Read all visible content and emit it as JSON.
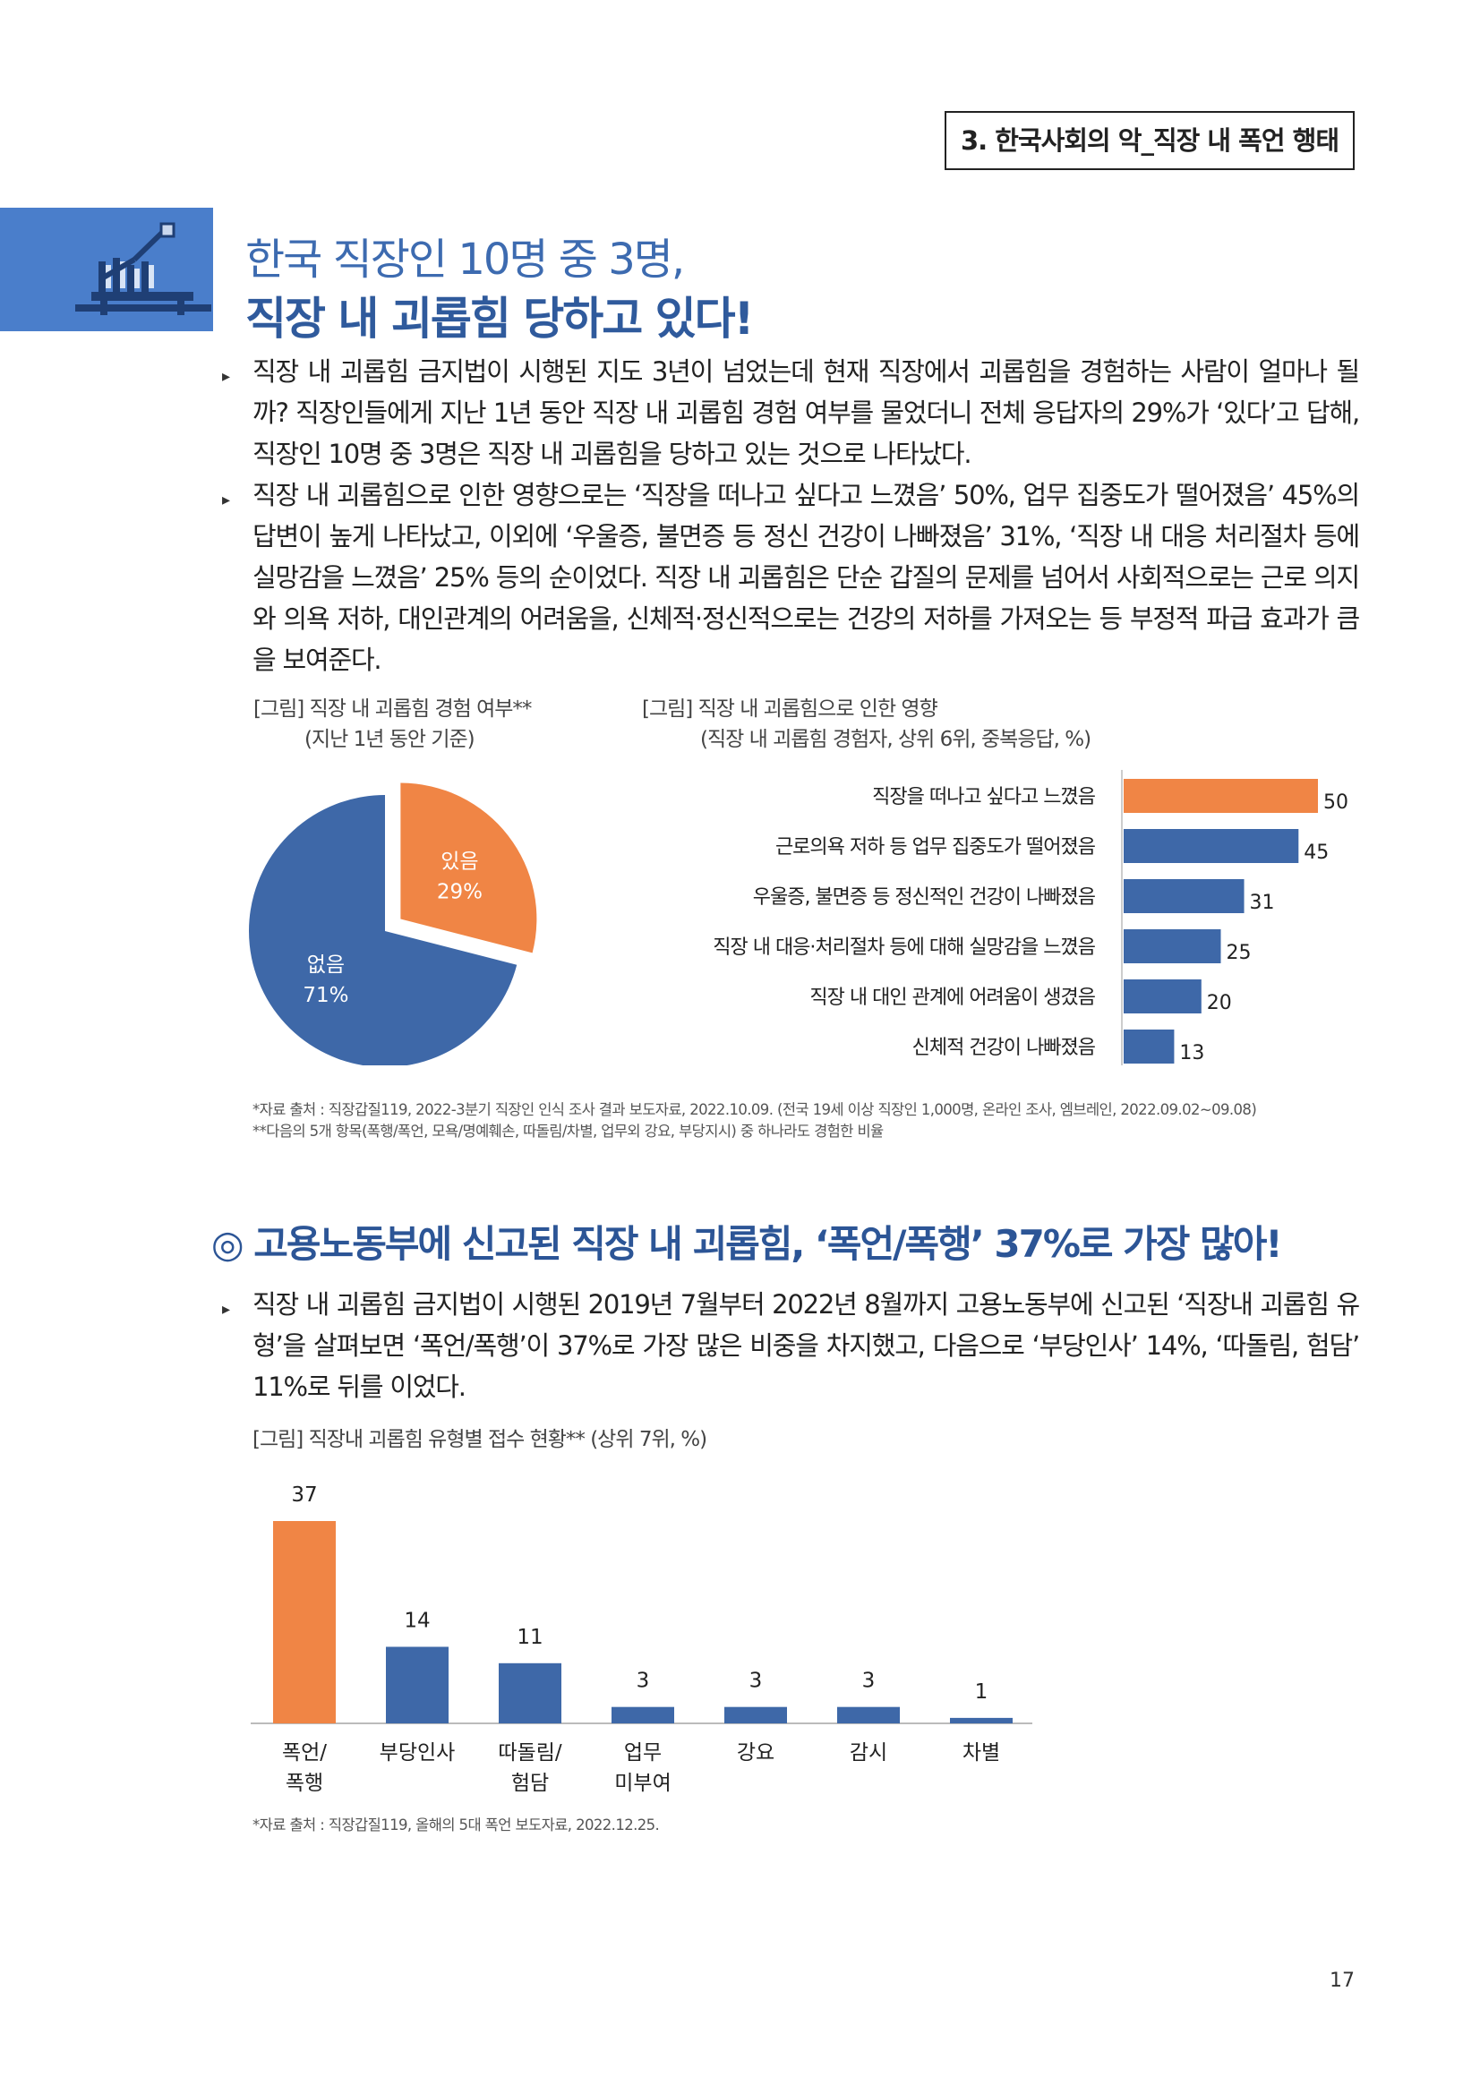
{
  "header": {
    "section_label": "3. 한국사회의 악_직장 내 폭언 행태"
  },
  "hero": {
    "title_line1": "한국 직장인 10명 중 3명,",
    "title_line2": "직장 내 괴롭힘 당하고 있다!"
  },
  "bullets1": [
    "직장 내 괴롭힘 금지법이 시행된 지도 3년이 넘었는데 현재 직장에서 괴롭힘을 경험하는 사람이 얼마나 될까? 직장인들에게 지난 1년 동안 직장 내 괴롭힘 경험 여부를 물었더니 전체 응답자의 29%가 ‘있다’고 답해, 직장인 10명 중 3명은 직장 내 괴롭힘을 당하고 있는 것으로 나타났다.",
    "직장 내 괴롭힘으로 인한 영향으로는 ‘직장을 떠나고 싶다고 느꼈음’ 50%, 업무 집중도가 떨어졌음’ 45%의 답변이 높게 나타났고, 이외에 ‘우울증, 불면증 등 정신 건강이 나빠졌음’ 31%, ‘직장 내 대응 처리절차 등에 실망감을 느꼈음’ 25% 등의 순이었다. 직장 내 괴롭힘은 단순 갑질의 문제를 넘어서 사회적으로는 근로 의지와 의욕 저하, 대인관계의 어려움을, 신체적·정신적으로는 건강의 저하를 가져오는 등 부정적 파급 효과가 큼을 보여준다."
  ],
  "figure_pie": {
    "caption_line1": "[그림] 직장 내 괴롭힘 경험 여부**",
    "caption_line2": "(지난 1년 동안 기준)"
  },
  "figure_hbar": {
    "caption_line1": "[그림] 직장 내 괴롭힘으로 인한 영향",
    "caption_line2": "(직장 내 괴롭힘 경험자, 상위 6위, 중복응답, %)"
  },
  "sources1": [
    "*자료 출처 : 직장갑질119, 2022-3분기 직장인 인식 조사 결과 보도자료, 2022.10.09. (전국 19세 이상 직장인 1,000명, 온라인 조사, 엠브레인, 2022.09.02~09.08)",
    "**다음의 5개 항목(폭행/폭언, 모욕/명예훼손, 따돌림/차별, 업무외 강요, 부당지시) 중 하나라도 경험한 비율"
  ],
  "section2": {
    "title": "◎ 고용노동부에 신고된 직장 내 괴롭힘, ‘폭언/폭행’ 37%로 가장 많아!"
  },
  "bullets2": [
    "직장 내 괴롭힘 금지법이 시행된 2019년 7월부터 2022년 8월까지 고용노동부에 신고된 ‘직장내 괴롭힘 유형’을 살펴보면 ‘폭언/폭행’이 37%로 가장 많은 비중을 차지했고, 다음으로 ‘부당인사’ 14%, ‘따돌림, 험담’ 11%로 뒤를 이었다."
  ],
  "figure_vbar": {
    "caption": "[그림] 직장내 괴롭힘 유형별 접수 현황** (상위 7위, %)"
  },
  "sources2": [
    "*자료 출처 : 직장갑질119, 올해의 5대 폭언 보도자료, 2022.12.25."
  ],
  "page_number": "17",
  "colors": {
    "orange": "#f08545",
    "blue": "#3e68a8",
    "title_blue": "#3d6bb0",
    "hero_block": "#4a7ecb"
  },
  "chart_data": [
    {
      "type": "pie",
      "categories": [
        "있음",
        "없음"
      ],
      "values": [
        29,
        71
      ],
      "value_labels": [
        "29%",
        "71%"
      ],
      "colors": [
        "#f08545",
        "#3e68a8"
      ]
    },
    {
      "type": "bar",
      "orientation": "horizontal",
      "categories": [
        "직장을 떠나고 싶다고 느꼈음",
        "근로의욕 저하 등 업무 집중도가 떨어졌음",
        "우울증, 불면증 등 정신적인 건강이 나빠졌음",
        "직장 내 대응·처리절차 등에 대해 실망감을 느꼈음",
        "직장 내 대인 관계에 어려움이 생겼음",
        "신체적 건강이 나빠졌음"
      ],
      "values": [
        50,
        45,
        31,
        25,
        20,
        13
      ],
      "value_labels": [
        "50",
        "45",
        "31",
        "25",
        "20",
        "13"
      ],
      "xlim": [
        0,
        50
      ],
      "highlight_index": 0
    },
    {
      "type": "bar",
      "orientation": "vertical",
      "categories": [
        [
          "폭언/",
          "폭행"
        ],
        [
          "부당인사"
        ],
        [
          "따돌림/",
          "험담"
        ],
        [
          "업무",
          "미부여"
        ],
        [
          "강요"
        ],
        [
          "감시"
        ],
        [
          "차별"
        ]
      ],
      "values": [
        37,
        14,
        11,
        3,
        3,
        3,
        1
      ],
      "value_labels": [
        "37",
        "14",
        "11",
        "3",
        "3",
        "3",
        "1"
      ],
      "ylim": [
        0,
        37
      ],
      "highlight_index": 0
    }
  ]
}
